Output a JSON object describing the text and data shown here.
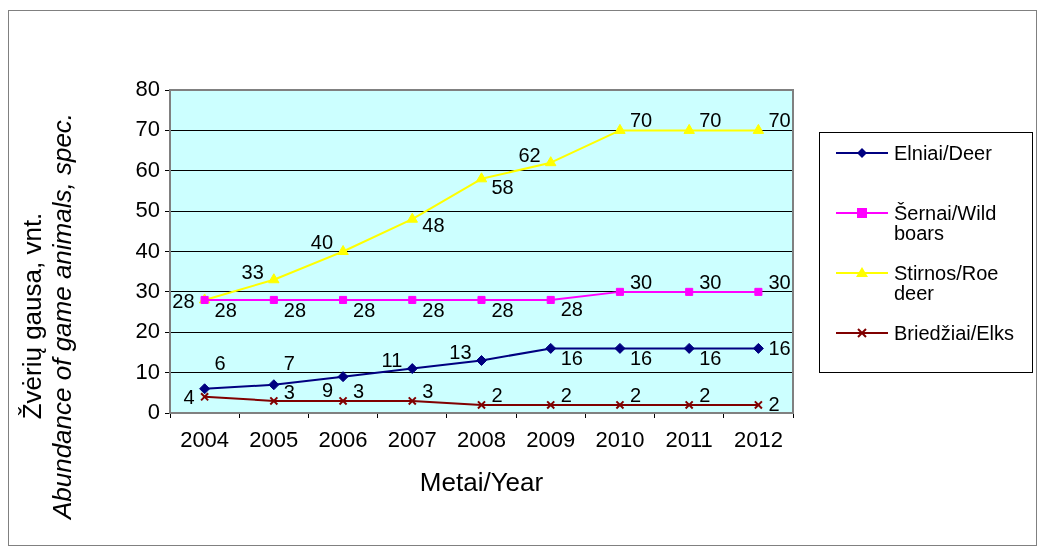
{
  "chart_data": {
    "type": "line",
    "xlabel": "Metai/Year",
    "ylabel": "Žvėrių gausa, vnt.\nAbundance of game animals, spec.",
    "categories": [
      "2004",
      "2005",
      "2006",
      "2007",
      "2008",
      "2009",
      "2010",
      "2011",
      "2012"
    ],
    "series": [
      {
        "name": "Elniai/Deer",
        "color": "#000080",
        "marker": "diamond",
        "values": [
          6,
          7,
          9,
          11,
          13,
          16,
          16,
          16,
          16
        ]
      },
      {
        "name": "Šernai/Wild boars",
        "color": "#ff00ff",
        "marker": "square",
        "values": [
          28,
          28,
          28,
          28,
          28,
          28,
          30,
          30,
          30
        ]
      },
      {
        "name": "Stirnos/Roe deer",
        "color": "#ffff00",
        "marker": "triangle",
        "values": [
          28,
          33,
          40,
          48,
          58,
          62,
          70,
          70,
          70
        ]
      },
      {
        "name": "Briedžiai/Elks",
        "color": "#800000",
        "marker": "cross",
        "values": [
          4,
          3,
          3,
          3,
          2,
          2,
          2,
          2,
          2
        ]
      }
    ],
    "ylim": [
      0,
      80
    ],
    "yticks": [
      0,
      10,
      20,
      30,
      40,
      50,
      60,
      70,
      80
    ],
    "grid": "y",
    "legend": "right",
    "data_labels": true,
    "line_style": "solid"
  }
}
